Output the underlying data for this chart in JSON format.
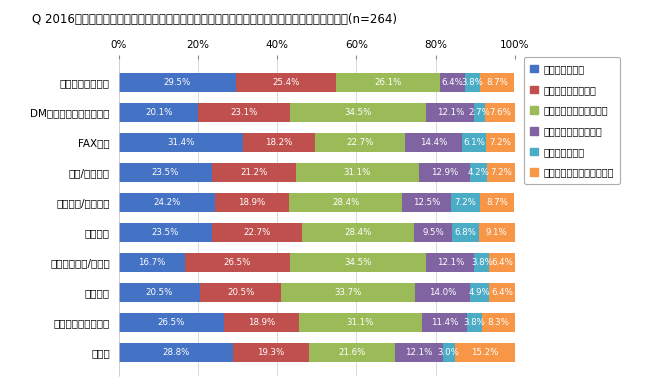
{
  "title": "Q 2016年に実施したオフラインでのマーケティング施策とその効果についてお答えください。(n=264)",
  "categories": [
    "顧客リストの購入",
    "DM（ダイレクトメール）",
    "FAX配信",
    "雑誌/新聞広告",
    "交通広告/屋外広告",
    "出版広告",
    "イベント出展/展示会",
    "セミナー",
    "テレマーケティング",
    "その他"
  ],
  "series": [
    {
      "name": "実施していない",
      "color": "#4472C4",
      "values": [
        29.5,
        20.1,
        31.4,
        23.5,
        24.2,
        23.5,
        16.7,
        20.5,
        26.5,
        28.8
      ]
    },
    {
      "name": "十分に効果はあった",
      "color": "#C0504D",
      "values": [
        25.4,
        23.1,
        18.2,
        21.2,
        18.9,
        22.7,
        26.5,
        20.5,
        18.9,
        19.3
      ]
    },
    {
      "name": "それなりに効果はあった",
      "color": "#9BBB59",
      "values": [
        26.1,
        34.5,
        22.7,
        31.1,
        28.4,
        28.4,
        34.5,
        33.7,
        31.1,
        21.6
      ]
    },
    {
      "name": "あまり効果はなかった",
      "color": "#8064A2",
      "values": [
        6.4,
        12.1,
        14.4,
        12.9,
        12.5,
        9.5,
        12.1,
        14.0,
        11.4,
        12.1
      ]
    },
    {
      "name": "効果はなかった",
      "color": "#4BACC6",
      "values": [
        3.8,
        2.7,
        6.1,
        4.2,
        7.2,
        6.8,
        3.8,
        4.9,
        3.8,
        3.0
      ]
    },
    {
      "name": "わからない・答えられない",
      "color": "#F79646",
      "values": [
        8.7,
        7.6,
        7.2,
        7.2,
        8.7,
        9.1,
        6.4,
        6.4,
        8.3,
        15.2
      ]
    }
  ],
  "background_color": "#FFFFFF",
  "title_fontsize": 8.5,
  "tick_fontsize": 7.5,
  "label_fontsize": 6.2,
  "legend_fontsize": 7.0
}
